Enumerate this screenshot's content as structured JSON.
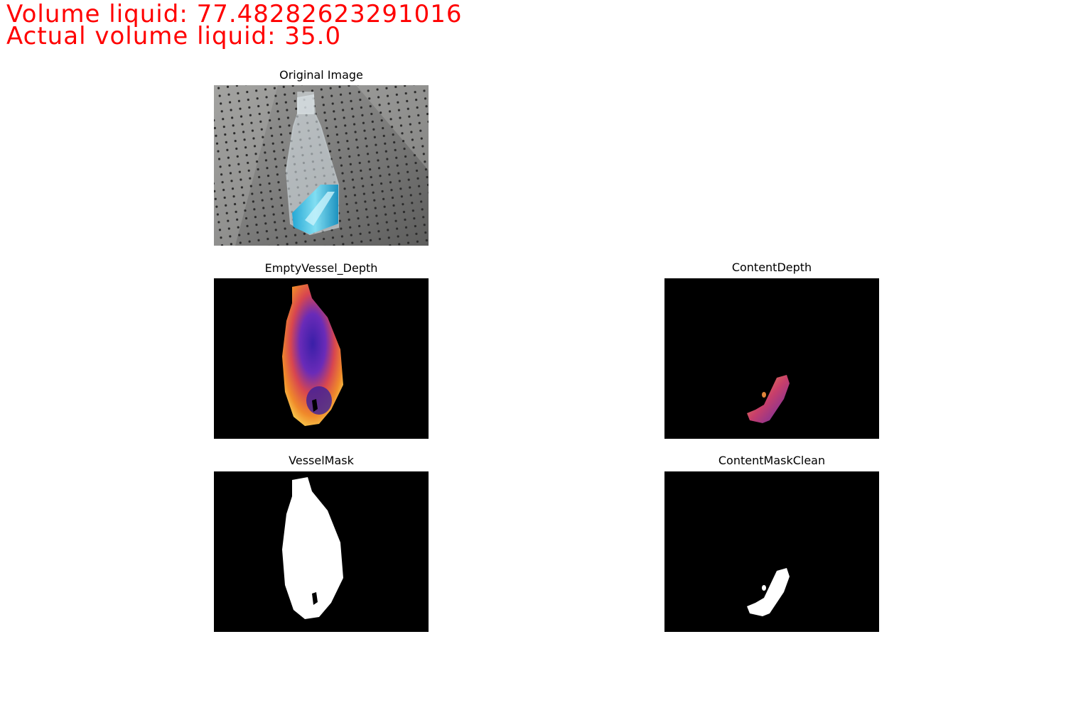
{
  "overlay": {
    "volume_line": "Volume liquid: 77.48282623291016",
    "actual_line": "Actual volume liquid: 35.0",
    "text_color": "#ff0000"
  },
  "panels": {
    "original": {
      "title": "Original Image"
    },
    "empty_vessel_depth": {
      "title": "EmptyVessel_Depth"
    },
    "content_depth": {
      "title": "ContentDepth"
    },
    "vessel_mask": {
      "title": "VesselMask"
    },
    "content_mask_clean": {
      "title": "ContentMaskClean"
    }
  }
}
